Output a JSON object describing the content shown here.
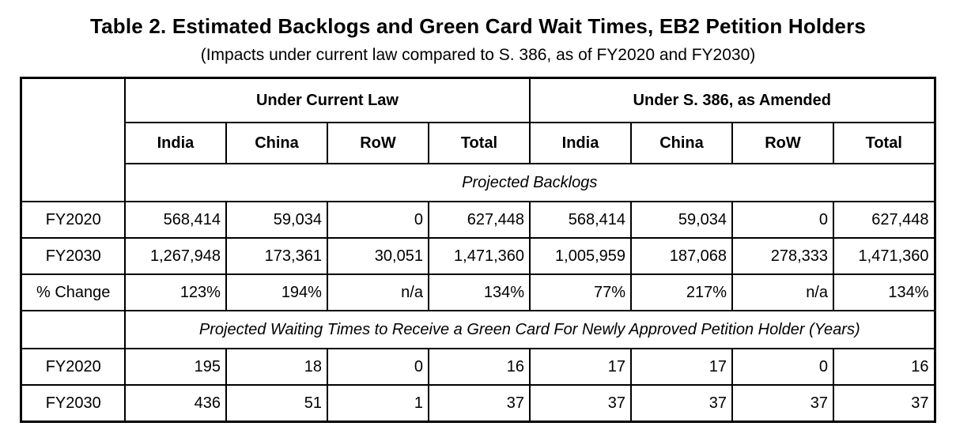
{
  "title": "Table 2. Estimated Backlogs and Green Card Wait Times, EB2 Petition Holders",
  "subtitle": "(Impacts under current law compared to S. 386, as of FY2020 and FY2030)",
  "colors": {
    "background": "#ffffff",
    "border": "#000000",
    "text": "#000000"
  },
  "table": {
    "group_headers": [
      {
        "label": "Under Current Law"
      },
      {
        "label": "Under S. 386, as Amended"
      }
    ],
    "column_headers": [
      "India",
      "China",
      "RoW",
      "Total",
      "India",
      "China",
      "RoW",
      "Total"
    ],
    "sections": [
      {
        "section_label": "Projected Backlogs",
        "rows": [
          {
            "label": "FY2020",
            "values": [
              "568,414",
              "59,034",
              "0",
              "627,448",
              "568,414",
              "59,034",
              "0",
              "627,448"
            ]
          },
          {
            "label": "FY2030",
            "values": [
              "1,267,948",
              "173,361",
              "30,051",
              "1,471,360",
              "1,005,959",
              "187,068",
              "278,333",
              "1,471,360"
            ]
          },
          {
            "label": "% Change",
            "values": [
              "123%",
              "194%",
              "n/a",
              "134%",
              "77%",
              "217%",
              "n/a",
              "134%"
            ]
          }
        ]
      },
      {
        "section_label": "Projected Waiting Times to Receive a Green Card For Newly Approved Petition Holder (Years)",
        "rows": [
          {
            "label": "FY2020",
            "values": [
              "195",
              "18",
              "0",
              "16",
              "17",
              "17",
              "0",
              "16"
            ]
          },
          {
            "label": "FY2030",
            "values": [
              "436",
              "51",
              "1",
              "37",
              "37",
              "37",
              "37",
              "37"
            ]
          }
        ]
      }
    ]
  }
}
